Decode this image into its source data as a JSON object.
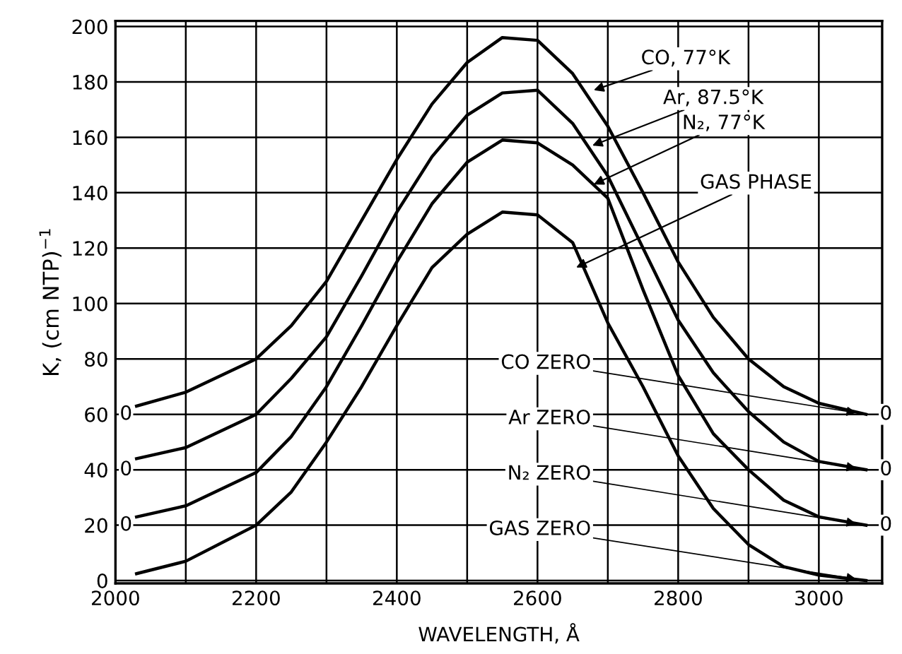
{
  "chart_data": {
    "type": "line",
    "xlabel": "WAVELENGTH, Å",
    "ylabel": "K, (cm NTP)$^{−1}$",
    "xlim": [
      2000,
      3090
    ],
    "ylim": [
      -1,
      202
    ],
    "xticks": [
      2000,
      {
        "value": 2100,
        "label": null
      },
      2200,
      {
        "value": 2300,
        "label": null
      },
      2400,
      {
        "value": 2500,
        "label": null
      },
      2600,
      {
        "value": 2700,
        "label": null
      },
      2800,
      {
        "value": 2900,
        "label": null
      },
      3000
    ],
    "yticks": [
      0,
      20,
      40,
      60,
      80,
      100,
      120,
      140,
      160,
      180,
      200
    ],
    "grid": true,
    "marker": "none",
    "line_style": "solid",
    "x": [
      2030,
      2100,
      2200,
      2250,
      2300,
      2350,
      2400,
      2450,
      2500,
      2550,
      2600,
      2650,
      2700,
      2750,
      2800,
      2850,
      2900,
      2950,
      3000,
      3067
    ],
    "series": [
      {
        "color": "#000000",
        "values": [
          63,
          68,
          80,
          92,
          108,
          130,
          152,
          172,
          187,
          196,
          195,
          183,
          164,
          140,
          115,
          95,
          80,
          70,
          64,
          60
        ]
      },
      {
        "color": "#000000",
        "values": [
          44,
          48,
          60,
          73,
          88,
          110,
          133,
          153,
          168,
          176,
          177,
          165,
          146,
          120,
          94,
          75,
          61,
          50,
          43,
          40
        ]
      },
      {
        "color": "#000000",
        "values": [
          23,
          27,
          39,
          52,
          70,
          92,
          115,
          136,
          151,
          159,
          158,
          150,
          138,
          105,
          74,
          53,
          40,
          29,
          23,
          20
        ]
      },
      {
        "color": "#000000",
        "values": [
          2.5,
          7,
          20,
          32,
          50,
          70,
          92,
          113,
          125,
          133,
          132,
          122,
          93,
          70,
          45,
          26,
          13,
          5,
          2,
          0
        ]
      }
    ],
    "annotations": [
      {
        "text": "CO, 77°K",
        "x": 2680,
        "y": 177
      },
      {
        "text": "Ar, 87.5°K",
        "x": 2678,
        "y": 157
      },
      {
        "text": "N₂, 77°K",
        "x": 2680,
        "y": 143
      },
      {
        "text": "GAS PHASE",
        "x": 2655,
        "y": 113
      },
      {
        "text": "CO ZERO",
        "x": 3067,
        "y": 60
      },
      {
        "text": "Ar ZERO",
        "x": 3067,
        "y": 40
      },
      {
        "text": "N₂ ZERO",
        "x": 3067,
        "y": 20
      },
      {
        "text": "GAS ZERO",
        "x": 3067,
        "y": 0
      },
      {
        "text": "0",
        "x": 2015,
        "y": 60
      },
      {
        "text": "0",
        "x": 2015,
        "y": 40
      },
      {
        "text": "0",
        "x": 2015,
        "y": 20
      },
      {
        "text": "0",
        "x": 3067,
        "y": 60
      },
      {
        "text": "0",
        "x": 3067,
        "y": 40
      },
      {
        "text": "0",
        "x": 3067,
        "y": 20
      }
    ]
  }
}
